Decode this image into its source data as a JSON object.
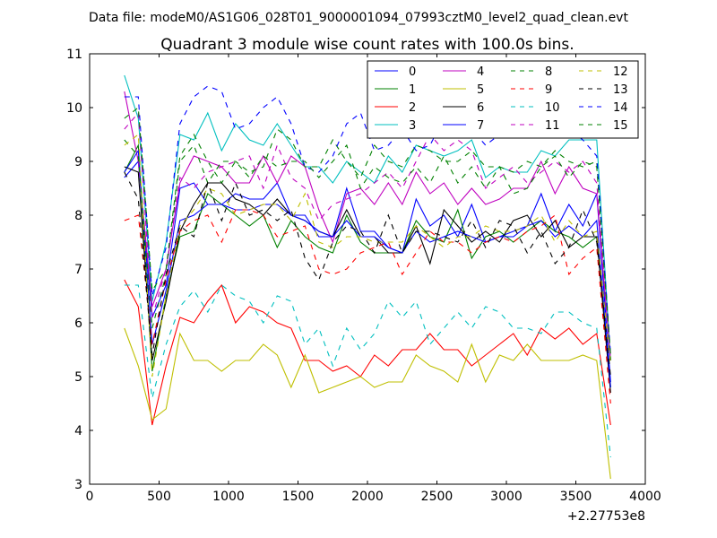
{
  "chart_data": {
    "type": "line",
    "suptitle": "Data file: modeM0/AS1G06_028T01_9000001094_07993cztM0_level2_quad_clean.evt",
    "title": "Quadrant 3 module wise count rates with 100.0s bins.",
    "xlabel": "",
    "ylabel": "",
    "x_offset_label": "+2.27753e8",
    "xlim": [
      0,
      4000
    ],
    "ylim": [
      3,
      11
    ],
    "xticks": [
      0,
      500,
      1000,
      1500,
      2000,
      2500,
      3000,
      3500,
      4000
    ],
    "yticks": [
      3,
      4,
      5,
      6,
      7,
      8,
      9,
      10,
      11
    ],
    "grid": false,
    "legend_position": "top-right",
    "legend_columns": 4,
    "x": [
      250,
      350,
      450,
      550,
      650,
      750,
      850,
      950,
      1050,
      1150,
      1250,
      1350,
      1450,
      1550,
      1650,
      1750,
      1850,
      1950,
      2050,
      2150,
      2250,
      2350,
      2450,
      2550,
      2650,
      2750,
      2850,
      2950,
      3050,
      3150,
      3250,
      3350,
      3450,
      3550,
      3650,
      3750
    ],
    "series": [
      {
        "name": "0",
        "color": "#0000ff",
        "dash": "solid",
        "values": [
          8.7,
          9.0,
          6.1,
          6.7,
          8.5,
          8.6,
          8.2,
          8.2,
          8.4,
          8.3,
          8.3,
          8.6,
          8.0,
          8.0,
          7.6,
          7.6,
          8.5,
          7.7,
          7.7,
          7.4,
          7.3,
          8.3,
          7.8,
          8.0,
          7.6,
          8.2,
          7.5,
          7.6,
          7.7,
          7.8,
          8.4,
          7.7,
          8.2,
          7.8,
          8.4,
          4.9
        ]
      },
      {
        "name": "1",
        "color": "#008000",
        "dash": "solid",
        "values": [
          8.8,
          9.3,
          5.1,
          6.5,
          7.6,
          7.7,
          8.4,
          8.2,
          8.0,
          7.8,
          8.0,
          7.4,
          7.9,
          7.6,
          7.4,
          7.3,
          8.0,
          7.5,
          7.3,
          7.3,
          7.3,
          7.9,
          7.6,
          7.5,
          8.1,
          7.2,
          7.6,
          7.7,
          7.5,
          7.7,
          7.9,
          7.7,
          7.6,
          7.4,
          7.6,
          4.8
        ]
      },
      {
        "name": "2",
        "color": "#ff0000",
        "dash": "solid",
        "values": [
          6.8,
          6.3,
          4.1,
          5.2,
          6.1,
          6.0,
          6.4,
          6.7,
          6.0,
          6.3,
          6.2,
          6.0,
          5.9,
          5.3,
          5.3,
          5.1,
          5.2,
          5.0,
          5.4,
          5.2,
          5.5,
          5.5,
          5.8,
          5.5,
          5.5,
          5.2,
          5.4,
          5.6,
          5.8,
          5.4,
          5.9,
          5.7,
          5.9,
          5.6,
          5.8,
          4.1
        ]
      },
      {
        "name": "3",
        "color": "#00bfbf",
        "dash": "solid",
        "values": [
          10.6,
          9.8,
          6.4,
          7.5,
          9.5,
          9.4,
          9.9,
          9.2,
          9.7,
          9.4,
          9.3,
          9.7,
          9.3,
          8.9,
          8.9,
          8.6,
          9.0,
          8.8,
          8.6,
          9.1,
          8.8,
          9.3,
          9.2,
          9.1,
          9.2,
          9.4,
          8.7,
          8.9,
          8.8,
          8.8,
          9.2,
          9.1,
          9.4,
          9.4,
          9.4,
          5.3
        ]
      },
      {
        "name": "4",
        "color": "#bf00bf",
        "dash": "solid",
        "values": [
          10.3,
          9.0,
          6.3,
          7.0,
          8.6,
          9.1,
          9.0,
          8.9,
          8.6,
          8.6,
          9.1,
          8.6,
          9.1,
          8.9,
          8.1,
          7.5,
          8.4,
          8.5,
          8.2,
          8.6,
          8.2,
          8.8,
          8.4,
          8.6,
          8.2,
          8.5,
          8.2,
          8.3,
          8.5,
          8.5,
          9.0,
          8.4,
          8.9,
          8.5,
          8.4,
          5.3
        ]
      },
      {
        "name": "5",
        "color": "#bfbf00",
        "dash": "solid",
        "values": [
          5.9,
          5.2,
          4.2,
          4.4,
          5.8,
          5.3,
          5.3,
          5.1,
          5.3,
          5.3,
          5.6,
          5.4,
          4.8,
          5.4,
          4.7,
          4.8,
          4.9,
          5.0,
          4.8,
          4.9,
          4.9,
          5.4,
          5.2,
          5.1,
          4.9,
          5.6,
          4.9,
          5.4,
          5.3,
          5.6,
          5.3,
          5.3,
          5.3,
          5.4,
          5.3,
          3.1
        ]
      },
      {
        "name": "6",
        "color": "#000000",
        "dash": "solid",
        "values": [
          8.9,
          8.8,
          5.3,
          6.4,
          7.7,
          8.2,
          8.6,
          8.6,
          8.3,
          8.2,
          8.0,
          8.3,
          8.0,
          7.9,
          7.7,
          7.6,
          8.1,
          7.6,
          7.6,
          7.3,
          7.3,
          7.8,
          7.1,
          8.1,
          7.8,
          7.5,
          7.7,
          7.5,
          7.9,
          8.0,
          7.6,
          7.9,
          7.4,
          7.6,
          7.6,
          4.7
        ]
      },
      {
        "name": "7",
        "color": "#0000ff",
        "dash": "solid",
        "values": [
          8.8,
          9.2,
          5.6,
          6.6,
          7.9,
          8.0,
          8.2,
          8.2,
          8.1,
          8.1,
          8.2,
          8.2,
          8.0,
          7.9,
          7.7,
          7.6,
          7.9,
          7.6,
          7.6,
          7.4,
          7.3,
          7.7,
          7.5,
          7.6,
          7.7,
          7.6,
          7.5,
          7.6,
          7.6,
          7.8,
          7.9,
          7.6,
          7.8,
          7.6,
          7.9,
          4.8
        ]
      },
      {
        "name": "8",
        "color": "#008000",
        "dash": "dashed",
        "values": [
          9.4,
          9.1,
          5.9,
          6.9,
          9.0,
          9.3,
          8.6,
          9.0,
          9.0,
          8.8,
          8.9,
          9.6,
          9.4,
          8.9,
          8.9,
          9.4,
          9.0,
          8.7,
          9.3,
          9.0,
          8.9,
          9.3,
          9.2,
          9.0,
          9.0,
          9.2,
          8.9,
          8.9,
          8.8,
          9.0,
          8.9,
          9.2,
          9.0,
          8.9,
          9.0,
          5.3
        ]
      },
      {
        "name": "9",
        "color": "#ff0000",
        "dash": "dashed",
        "values": [
          7.9,
          8.0,
          5.6,
          6.8,
          7.7,
          7.9,
          8.0,
          7.5,
          8.1,
          8.1,
          8.0,
          7.6,
          7.7,
          7.8,
          7.0,
          6.9,
          7.0,
          7.3,
          7.4,
          7.5,
          6.9,
          7.3,
          7.7,
          7.5,
          7.5,
          7.3,
          7.5,
          7.6,
          7.5,
          7.7,
          7.8,
          8.0,
          6.9,
          7.2,
          7.4,
          4.5
        ]
      },
      {
        "name": "10",
        "color": "#00bfbf",
        "dash": "dashed",
        "values": [
          6.7,
          6.7,
          4.6,
          5.6,
          6.3,
          6.6,
          6.2,
          6.7,
          6.5,
          6.4,
          6.0,
          6.5,
          6.4,
          5.6,
          5.9,
          5.2,
          5.9,
          5.5,
          5.8,
          6.4,
          6.1,
          6.4,
          5.6,
          5.9,
          6.2,
          5.9,
          6.3,
          6.2,
          5.9,
          5.9,
          5.8,
          6.2,
          6.2,
          6.0,
          5.9,
          3.5
        ]
      },
      {
        "name": "11",
        "color": "#bf00bf",
        "dash": "dashed",
        "values": [
          9.6,
          9.9,
          6.1,
          7.0,
          8.7,
          8.5,
          8.8,
          8.9,
          9.0,
          9.1,
          8.5,
          9.3,
          8.7,
          8.5,
          7.9,
          8.2,
          8.3,
          8.4,
          8.6,
          8.8,
          8.5,
          9.0,
          9.5,
          9.2,
          9.4,
          9.2,
          8.5,
          8.7,
          8.9,
          8.6,
          8.8,
          9.0,
          8.8,
          9.0,
          8.6,
          5.3
        ]
      },
      {
        "name": "12",
        "color": "#bfbf00",
        "dash": "dashed",
        "values": [
          9.3,
          9.5,
          5.0,
          6.5,
          7.8,
          8.1,
          8.5,
          8.4,
          8.0,
          8.1,
          8.2,
          8.2,
          7.9,
          8.4,
          7.5,
          7.4,
          7.6,
          7.6,
          7.5,
          7.5,
          7.5,
          7.8,
          7.6,
          7.4,
          7.6,
          7.6,
          7.8,
          7.7,
          7.7,
          7.8,
          8.0,
          7.5,
          7.9,
          7.6,
          7.7,
          5.2
        ]
      },
      {
        "name": "13",
        "color": "#000000",
        "dash": "dashed",
        "values": [
          8.8,
          8.3,
          5.4,
          6.9,
          7.8,
          7.6,
          8.6,
          7.9,
          8.6,
          8.0,
          8.1,
          7.9,
          8.1,
          7.2,
          6.8,
          7.5,
          7.8,
          7.7,
          7.3,
          8.0,
          7.3,
          7.7,
          7.7,
          7.6,
          7.5,
          7.9,
          7.4,
          7.9,
          7.8,
          7.3,
          7.7,
          7.1,
          7.4,
          8.1,
          7.5,
          5.0
        ]
      },
      {
        "name": "14",
        "color": "#0000ff",
        "dash": "dashed",
        "values": [
          10.2,
          10.2,
          6.5,
          7.4,
          9.7,
          10.2,
          10.4,
          10.3,
          9.6,
          9.7,
          10.0,
          10.2,
          9.7,
          8.9,
          8.8,
          9.1,
          9.7,
          9.9,
          9.2,
          9.3,
          9.6,
          9.2,
          9.3,
          9.8,
          9.6,
          9.6,
          9.3,
          9.5,
          9.5,
          9.5,
          9.5,
          9.6,
          9.6,
          9.4,
          9.1,
          5.4
        ]
      },
      {
        "name": "15",
        "color": "#008000",
        "dash": "dashed",
        "values": [
          9.8,
          10.0,
          6.6,
          7.0,
          9.1,
          9.5,
          9.0,
          8.6,
          9.0,
          8.7,
          9.1,
          8.9,
          9.0,
          9.0,
          8.7,
          9.0,
          9.3,
          8.5,
          8.9,
          8.7,
          8.6,
          8.9,
          8.6,
          9.1,
          8.6,
          8.9,
          8.5,
          8.9,
          8.4,
          8.5,
          8.9,
          9.1,
          8.7,
          9.0,
          8.9,
          5.4
        ]
      }
    ]
  }
}
